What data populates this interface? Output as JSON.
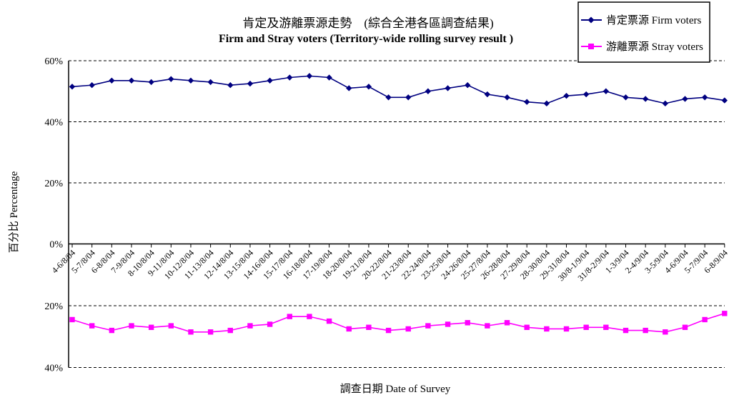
{
  "chart": {
    "title_zh": "肯定及游離票源走勢　(綜合全港各區調查結果)",
    "title_en": "Firm and Stray voters (Territory-wide rolling survey result )",
    "y_axis_label": "百分比 Percentage",
    "x_axis_label": "調查日期 Date of Survey"
  },
  "legend": {
    "firm_label": "肯定票源 Firm voters",
    "stray_label": "游離票源 Stray voters"
  },
  "colors": {
    "firm": "#000080",
    "stray": "#FF00FF",
    "axis": "#000000"
  },
  "chart_data": {
    "type": "line",
    "title": "肯定及游離票源走勢 (綜合全港各區調查結果) / Firm and Stray voters (Territory-wide rolling survey result )",
    "xlabel": "調查日期 Date of Survey",
    "ylabel": "百分比 Percentage",
    "grid": "dashed-horizontal",
    "legend_position": "top-right",
    "layout_note": "mirror chart: firm voters plotted on upper axis (0-60% rising up), stray voters on lower axis (0-40% increasing downward)",
    "categories": [
      "4-6/8/04",
      "5-7/8/04",
      "6-8/8/04",
      "7-9/8/04",
      "8-10/8/04",
      "9-11/8/04",
      "10-12/8/04",
      "11-13/8/04",
      "12-14/8/04",
      "13-15/8/04",
      "14-16/8/04",
      "15-17/8/04",
      "16-18/8/04",
      "17-19/8/04",
      "18-20/8/04",
      "19-21/8/04",
      "20-22/8/04",
      "21-23/8/04",
      "22-24/8/04",
      "23-25/8/04",
      "24-26/8/04",
      "25-27/8/04",
      "26-28/8/04",
      "27-29/8/04",
      "28-30/8/04",
      "29-31/8/04",
      "30/8-1/9/04",
      "31/8-2/9/04",
      "1-3/9/04",
      "2-4/9/04",
      "3-5/9/04",
      "4-6/9/04",
      "5-7/9/04",
      "6-8/9/04"
    ],
    "series": [
      {
        "name": "肯定票源 Firm voters",
        "color": "#000080",
        "marker": "diamond",
        "axis": "upper",
        "values": [
          51.5,
          52,
          53.5,
          53.5,
          53,
          54,
          53.5,
          53,
          52,
          52.5,
          53.5,
          54.5,
          55,
          54.5,
          51,
          51.5,
          48,
          48,
          50,
          51,
          52,
          49,
          48,
          46.5,
          46,
          48.5,
          49,
          50,
          48,
          47.5,
          46,
          47.5,
          48,
          47
        ]
      },
      {
        "name": "游離票源 Stray voters",
        "color": "#FF00FF",
        "marker": "square",
        "axis": "lower-inverted",
        "values": [
          24.5,
          26.5,
          28,
          26.5,
          27,
          26.5,
          28.5,
          28.5,
          28,
          26.5,
          26,
          23.5,
          23.5,
          25,
          27.5,
          27,
          28,
          27.5,
          26.5,
          26,
          25.5,
          26.5,
          25.5,
          27,
          27.5,
          27.5,
          27,
          27,
          28,
          28,
          28.5,
          27,
          24.5,
          22.5
        ]
      }
    ],
    "upper_axis": {
      "range": [
        0,
        60
      ],
      "tick_values": [
        60,
        40,
        20,
        0
      ],
      "tick_labels": [
        "60%",
        "40%",
        "20%",
        "0%"
      ]
    },
    "lower_axis": {
      "range": [
        0,
        40
      ],
      "inverted": true,
      "tick_values": [
        20,
        40
      ],
      "tick_labels": [
        "20%",
        "40%"
      ]
    }
  }
}
